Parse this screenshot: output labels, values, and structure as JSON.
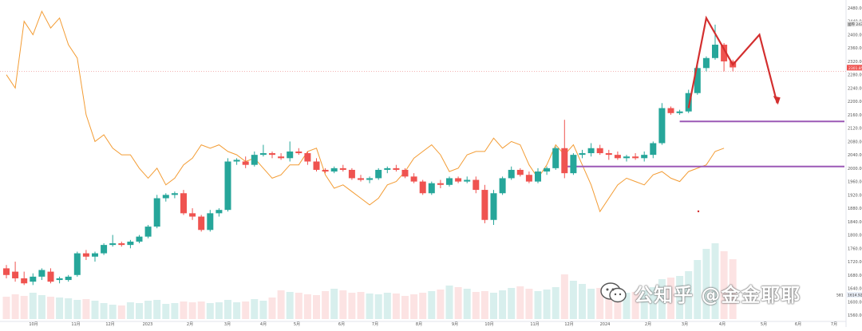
{
  "chart_data": {
    "type": "candlestick",
    "title": "",
    "xlabel": "",
    "ylabel": "",
    "ylim": [
      1560,
      2480
    ],
    "y_ticks": [
      2480,
      2440,
      2400,
      2360,
      2320,
      2280,
      2240,
      2200,
      2160,
      2120,
      2080,
      2040,
      2000,
      1960,
      1920,
      1880,
      1840,
      1800,
      1760,
      1720,
      1680,
      1640,
      1600,
      1560
    ],
    "y_tick_labels": [
      "2480.000",
      "2440.000",
      "2400.000",
      "2360.000",
      "2320.000",
      "2280.000",
      "2240.000",
      "2200.000",
      "2160.000",
      "2120.000",
      "2080.000",
      "2040.000",
      "2000.000",
      "1960.000",
      "1920.000",
      "1880.000",
      "1840.000",
      "1800.000",
      "1760.000",
      "1720.000",
      "1680.000",
      "1640.000",
      "1600.000",
      "1560.000"
    ],
    "x_tick_labels": [
      "10月",
      "11月",
      "12月",
      "2023",
      "2月",
      "3月",
      "4月",
      "5月",
      "6月",
      "7月",
      "8月",
      "9月",
      "10月",
      "11月",
      "12月",
      "2024",
      "2月",
      "3月",
      "4月",
      "5月",
      "6月",
      "7月"
    ],
    "price_labels": {
      "upper": "2431.990",
      "upper_prefix": "國際",
      "current": "2301.850",
      "volume_left": "581",
      "volume_right": "1614.9258"
    },
    "candles": [
      {
        "o": 1700,
        "h": 1710,
        "l": 1670,
        "c": 1680
      },
      {
        "o": 1690,
        "h": 1720,
        "l": 1660,
        "c": 1670
      },
      {
        "o": 1670,
        "h": 1690,
        "l": 1650,
        "c": 1655
      },
      {
        "o": 1660,
        "h": 1685,
        "l": 1650,
        "c": 1675
      },
      {
        "o": 1675,
        "h": 1700,
        "l": 1665,
        "c": 1695
      },
      {
        "o": 1690,
        "h": 1700,
        "l": 1655,
        "c": 1660
      },
      {
        "o": 1665,
        "h": 1675,
        "l": 1655,
        "c": 1670
      },
      {
        "o": 1665,
        "h": 1680,
        "l": 1660,
        "c": 1675
      },
      {
        "o": 1680,
        "h": 1750,
        "l": 1675,
        "c": 1745
      },
      {
        "o": 1745,
        "h": 1755,
        "l": 1725,
        "c": 1735
      },
      {
        "o": 1735,
        "h": 1750,
        "l": 1720,
        "c": 1745
      },
      {
        "o": 1745,
        "h": 1775,
        "l": 1740,
        "c": 1770
      },
      {
        "o": 1770,
        "h": 1800,
        "l": 1765,
        "c": 1775
      },
      {
        "o": 1775,
        "h": 1780,
        "l": 1765,
        "c": 1770
      },
      {
        "o": 1770,
        "h": 1785,
        "l": 1760,
        "c": 1780
      },
      {
        "o": 1780,
        "h": 1800,
        "l": 1775,
        "c": 1795
      },
      {
        "o": 1795,
        "h": 1830,
        "l": 1790,
        "c": 1825
      },
      {
        "o": 1825,
        "h": 1920,
        "l": 1820,
        "c": 1910
      },
      {
        "o": 1910,
        "h": 1925,
        "l": 1900,
        "c": 1920
      },
      {
        "o": 1920,
        "h": 1930,
        "l": 1910,
        "c": 1925
      },
      {
        "o": 1925,
        "h": 1935,
        "l": 1860,
        "c": 1865
      },
      {
        "o": 1865,
        "h": 1880,
        "l": 1845,
        "c": 1855
      },
      {
        "o": 1855,
        "h": 1860,
        "l": 1810,
        "c": 1815
      },
      {
        "o": 1815,
        "h": 1875,
        "l": 1810,
        "c": 1865
      },
      {
        "o": 1865,
        "h": 1880,
        "l": 1855,
        "c": 1875
      },
      {
        "o": 1875,
        "h": 2030,
        "l": 1870,
        "c": 2020
      },
      {
        "o": 2020,
        "h": 2030,
        "l": 2010,
        "c": 2025
      },
      {
        "o": 2020,
        "h": 2035,
        "l": 2000,
        "c": 2010
      },
      {
        "o": 2010,
        "h": 2050,
        "l": 2005,
        "c": 2040
      },
      {
        "o": 2040,
        "h": 2070,
        "l": 2035,
        "c": 2045
      },
      {
        "o": 2045,
        "h": 2050,
        "l": 2030,
        "c": 2040
      },
      {
        "o": 2035,
        "h": 2045,
        "l": 2025,
        "c": 2030
      },
      {
        "o": 2030,
        "h": 2080,
        "l": 2020,
        "c": 2050
      },
      {
        "o": 2050,
        "h": 2060,
        "l": 2040,
        "c": 2045
      },
      {
        "o": 2045,
        "h": 2050,
        "l": 2010,
        "c": 2020
      },
      {
        "o": 2020,
        "h": 2030,
        "l": 1990,
        "c": 1995
      },
      {
        "o": 1995,
        "h": 2000,
        "l": 1985,
        "c": 1990
      },
      {
        "o": 1990,
        "h": 2005,
        "l": 1985,
        "c": 2000
      },
      {
        "o": 2000,
        "h": 2010,
        "l": 1990,
        "c": 1995
      },
      {
        "o": 1995,
        "h": 2000,
        "l": 1965,
        "c": 1970
      },
      {
        "o": 1970,
        "h": 1980,
        "l": 1960,
        "c": 1965
      },
      {
        "o": 1965,
        "h": 1975,
        "l": 1955,
        "c": 1970
      },
      {
        "o": 1970,
        "h": 2000,
        "l": 1965,
        "c": 1995
      },
      {
        "o": 1995,
        "h": 2005,
        "l": 1985,
        "c": 2000
      },
      {
        "o": 2000,
        "h": 2010,
        "l": 1990,
        "c": 1995
      },
      {
        "o": 1995,
        "h": 2000,
        "l": 1970,
        "c": 1975
      },
      {
        "o": 1975,
        "h": 1985,
        "l": 1955,
        "c": 1960
      },
      {
        "o": 1960,
        "h": 1965,
        "l": 1920,
        "c": 1925
      },
      {
        "o": 1925,
        "h": 1960,
        "l": 1920,
        "c": 1955
      },
      {
        "o": 1955,
        "h": 1965,
        "l": 1940,
        "c": 1950
      },
      {
        "o": 1950,
        "h": 1975,
        "l": 1945,
        "c": 1970
      },
      {
        "o": 1970,
        "h": 1975,
        "l": 1955,
        "c": 1960
      },
      {
        "o": 1960,
        "h": 1975,
        "l": 1955,
        "c": 1965
      },
      {
        "o": 1965,
        "h": 1975,
        "l": 1925,
        "c": 1935
      },
      {
        "o": 1935,
        "h": 1950,
        "l": 1835,
        "c": 1845
      },
      {
        "o": 1845,
        "h": 1935,
        "l": 1830,
        "c": 1925
      },
      {
        "o": 1925,
        "h": 1975,
        "l": 1920,
        "c": 1970
      },
      {
        "o": 1970,
        "h": 2005,
        "l": 1965,
        "c": 1995
      },
      {
        "o": 1995,
        "h": 2000,
        "l": 1975,
        "c": 1980
      },
      {
        "o": 1980,
        "h": 1990,
        "l": 1955,
        "c": 1960
      },
      {
        "o": 1960,
        "h": 2000,
        "l": 1955,
        "c": 1990
      },
      {
        "o": 1990,
        "h": 2005,
        "l": 1980,
        "c": 2000
      },
      {
        "o": 2000,
        "h": 2065,
        "l": 1995,
        "c": 2060
      },
      {
        "o": 2060,
        "h": 2145,
        "l": 1970,
        "c": 1985
      },
      {
        "o": 1985,
        "h": 2045,
        "l": 1980,
        "c": 2040
      },
      {
        "o": 2040,
        "h": 2055,
        "l": 2030,
        "c": 2045
      },
      {
        "o": 2045,
        "h": 2075,
        "l": 2035,
        "c": 2060
      },
      {
        "o": 2060,
        "h": 2070,
        "l": 2040,
        "c": 2045
      },
      {
        "o": 2045,
        "h": 2055,
        "l": 2025,
        "c": 2040
      },
      {
        "o": 2040,
        "h": 2050,
        "l": 2025,
        "c": 2030
      },
      {
        "o": 2030,
        "h": 2040,
        "l": 2020,
        "c": 2035
      },
      {
        "o": 2035,
        "h": 2045,
        "l": 2025,
        "c": 2030
      },
      {
        "o": 2030,
        "h": 2050,
        "l": 2020,
        "c": 2040
      },
      {
        "o": 2040,
        "h": 2080,
        "l": 2030,
        "c": 2075
      },
      {
        "o": 2075,
        "h": 2195,
        "l": 2070,
        "c": 2180
      },
      {
        "o": 2180,
        "h": 2185,
        "l": 2160,
        "c": 2165
      },
      {
        "o": 2165,
        "h": 2175,
        "l": 2160,
        "c": 2170
      },
      {
        "o": 2170,
        "h": 2235,
        "l": 2165,
        "c": 2225
      },
      {
        "o": 2225,
        "h": 2320,
        "l": 2220,
        "c": 2300
      },
      {
        "o": 2300,
        "h": 2335,
        "l": 2290,
        "c": 2330
      },
      {
        "o": 2330,
        "h": 2430,
        "l": 2325,
        "c": 2370
      },
      {
        "o": 2370,
        "h": 2375,
        "l": 2290,
        "c": 2320
      },
      {
        "o": 2320,
        "h": 2325,
        "l": 2290,
        "c": 2302
      }
    ],
    "series": [
      {
        "values": [
          2280,
          2240,
          2440,
          2400,
          2470,
          2420,
          2450,
          2370,
          2330,
          2160,
          2080,
          2100,
          2060,
          2040,
          2040,
          2000,
          1970,
          2000,
          1950,
          1970,
          2010,
          2030,
          2070,
          2060,
          2070,
          2050,
          2040,
          2020,
          2030,
          2000,
          1970,
          1980,
          2010,
          2010,
          2050,
          2060,
          1980,
          1940,
          1950,
          1930,
          1910,
          1890,
          1910,
          1950,
          1960,
          1990,
          2030,
          2050,
          2070,
          2040,
          1990,
          2000,
          2040,
          2050,
          2050,
          2090,
          2060,
          2080,
          2070,
          2010,
          1970,
          2010,
          2070,
          2040,
          2070,
          2010,
          1950,
          1870,
          1910,
          1950,
          1970,
          1960,
          1950,
          1980,
          1990,
          1970,
          1960,
          1990,
          2000,
          2010,
          2050,
          2060
        ]
      }
    ],
    "volume_ratios": [
      0.28,
      0.31,
      0.29,
      0.33,
      0.3,
      0.28,
      0.27,
      0.26,
      0.24,
      0.25,
      0.23,
      0.2,
      0.18,
      0.17,
      0.21,
      0.2,
      0.23,
      0.24,
      0.19,
      0.2,
      0.22,
      0.21,
      0.22,
      0.2,
      0.21,
      0.24,
      0.21,
      0.22,
      0.25,
      0.23,
      0.27,
      0.36,
      0.34,
      0.33,
      0.31,
      0.3,
      0.35,
      0.38,
      0.36,
      0.33,
      0.34,
      0.32,
      0.31,
      0.33,
      0.32,
      0.29,
      0.31,
      0.33,
      0.35,
      0.37,
      0.42,
      0.4,
      0.38,
      0.34,
      0.35,
      0.33,
      0.36,
      0.39,
      0.41,
      0.38,
      0.35,
      0.37,
      0.4,
      0.56,
      0.48,
      0.44,
      0.38,
      0.39,
      0.36,
      0.35,
      0.33,
      0.34,
      0.36,
      0.4,
      0.5,
      0.52,
      0.54,
      0.6,
      0.74,
      0.88,
      0.95,
      0.85,
      0.75
    ],
    "horizontal_lines": [
      {
        "y": 2140
      },
      {
        "y": 2005
      }
    ],
    "arrow_path": [
      [
        77,
        2180
      ],
      [
        79,
        2450
      ],
      [
        82,
        2310
      ],
      [
        85,
        2400
      ],
      [
        87,
        2195
      ]
    ],
    "grid": false,
    "colors": {
      "up": "#26a69a",
      "down": "#ef5350",
      "line": "#f39c34",
      "hline": "#9b59b6",
      "arrow": "#d32f2f"
    }
  },
  "watermark": {
    "text": "公知乎 @金金耶耶"
  }
}
